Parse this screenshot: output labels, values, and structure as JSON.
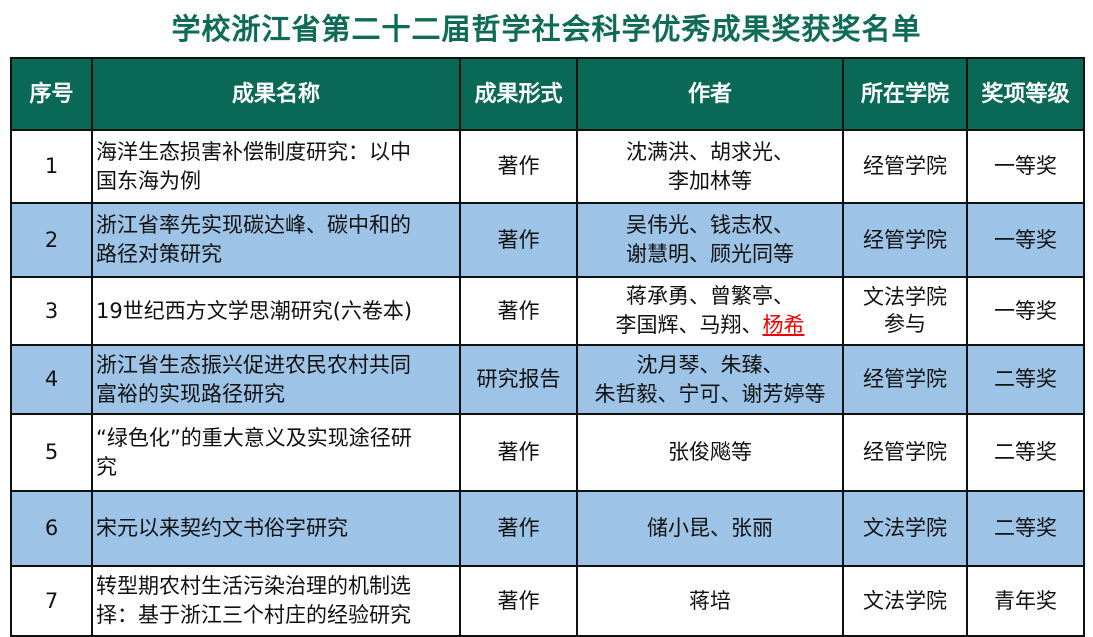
{
  "title": "学校浙江省第二十二届哲学社会科学优秀成果奖获奖名单",
  "columns": [
    "序号",
    "成果名称",
    "成果形式",
    "作者",
    "所在学院",
    "奖项等级"
  ],
  "rows": [
    {
      "no": "1",
      "title_lines": [
        "海洋生态损害补偿制度研究：以中",
        "国东海为例"
      ],
      "form": "著作",
      "author_lines": [
        [
          "沈满洪、胡求光、"
        ],
        [
          "李加林等"
        ]
      ],
      "college": "经管学院",
      "award": "一等奖"
    },
    {
      "no": "2",
      "title_lines": [
        "浙江省率先实现碳达峰、碳中和的",
        "路径对策研究"
      ],
      "form": "著作",
      "author_lines": [
        [
          "吴伟光、钱志权、"
        ],
        [
          "谢慧明、顾光同等"
        ]
      ],
      "college": "经管学院",
      "award": "一等奖"
    },
    {
      "no": "3",
      "title_lines": [
        "19世纪西方文学思潮研究(六卷本)"
      ],
      "form": "著作",
      "author_lines": [
        [
          "蒋承勇、曾繁亭、"
        ],
        [
          "李国辉、马翔、",
          {
            "text": "杨希",
            "highlight": true
          }
        ]
      ],
      "college": "文法学院参与",
      "award": "一等奖"
    },
    {
      "no": "4",
      "title_lines": [
        "浙江省生态振兴促进农民农村共同",
        "富裕的实现路径研究"
      ],
      "form": "研究报告",
      "author_lines": [
        [
          "沈月琴、朱臻、"
        ],
        [
          "朱哲毅、宁可、谢芳婷等"
        ]
      ],
      "college": "经管学院",
      "award": "二等奖"
    },
    {
      "no": "5",
      "title_lines": [
        "“绿色化”的重大意义及实现途径研",
        "究"
      ],
      "form": "著作",
      "author_lines": [
        [
          "张俊飚等"
        ]
      ],
      "college": "经管学院",
      "award": "二等奖"
    },
    {
      "no": "6",
      "title_lines": [
        "宋元以来契约文书俗字研究"
      ],
      "form": "著作",
      "author_lines": [
        [
          "储小昆、张丽"
        ]
      ],
      "college": "文法学院",
      "award": "二等奖"
    },
    {
      "no": "7",
      "title_lines": [
        "转型期农村生活污染治理的机制选",
        "择：基于浙江三个村庄的经验研究"
      ],
      "form": "著作",
      "author_lines": [
        [
          "蒋培"
        ]
      ],
      "college": "文法学院",
      "award": "青年奖"
    }
  ],
  "colors": {
    "header_bg": "#0a6856",
    "title": "#0e6b55",
    "alt_row": "#9dc3e6",
    "highlight": "#e00000"
  }
}
